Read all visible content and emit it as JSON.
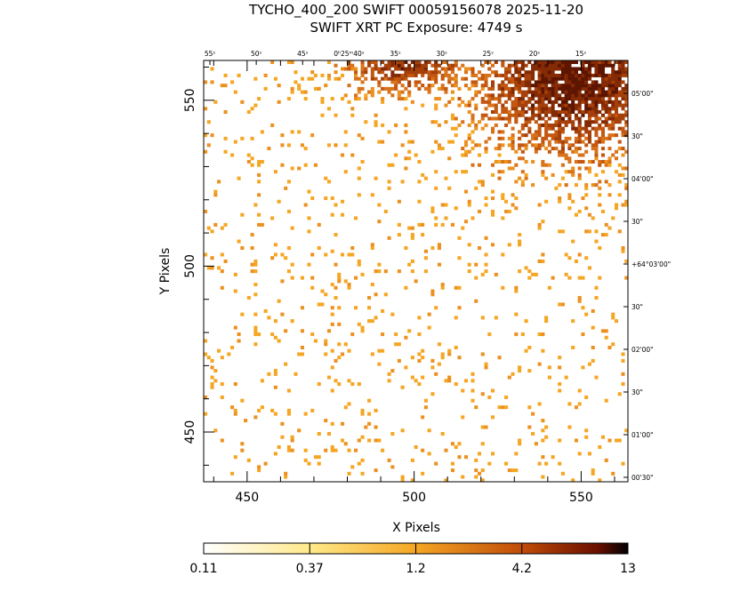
{
  "header": {
    "title_line1": "TYCHO_400_200 SWIFT 00059156078 2025-11-20",
    "title_line2": "SWIFT XRT PC Exposure:       4749 s"
  },
  "chart_data": {
    "type": "heatmap",
    "xlabel": "X Pixels",
    "ylabel": "Y Pixels",
    "xlim": [
      437,
      564
    ],
    "ylim": [
      435,
      562
    ],
    "x_ticks": [
      450,
      500,
      550
    ],
    "y_ticks": [
      450,
      500,
      550
    ],
    "grid": false,
    "ra_labels": [
      "55ˢ",
      "50ˢ",
      "45ˢ",
      "0ʰ25ᵐ40ˢ",
      "35ˢ",
      "30ˢ",
      "25ˢ",
      "20ˢ",
      "15ˢ"
    ],
    "dec_labels": [
      "05'00\"",
      "30\"",
      "04'00\"",
      "30\"",
      "+64°03'00\"",
      "30\"",
      "02'00\"",
      "30\"",
      "01'00\"",
      "00'30\""
    ],
    "colorbar": {
      "tick_labels": [
        "0.11",
        "0.37",
        "1.2",
        "4.2",
        "13"
      ],
      "colors": [
        "#ffffff",
        "#ffe98a",
        "#f5a623",
        "#c04c08",
        "#6a0e00",
        "#000000"
      ],
      "scale": "log"
    },
    "counts_description": {
      "min": 0.11,
      "max": 13,
      "bright_region": "upper-right"
    }
  }
}
